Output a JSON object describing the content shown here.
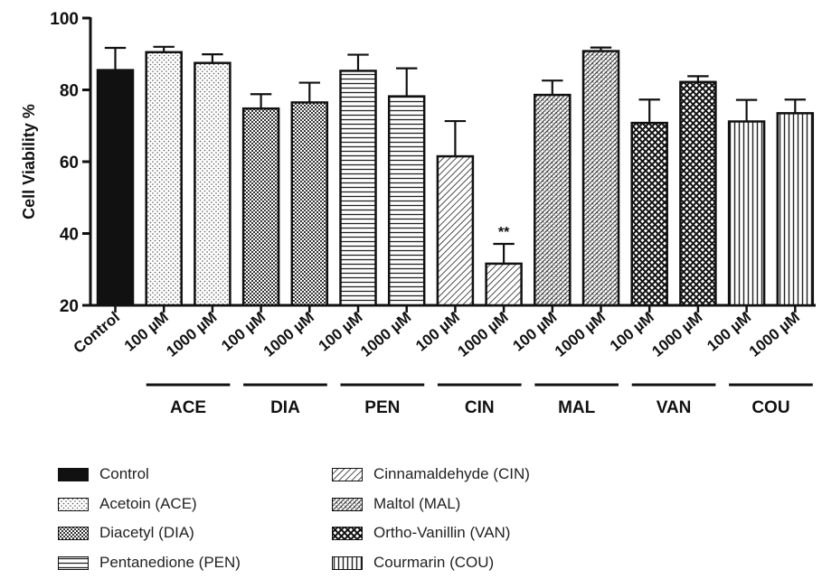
{
  "chart_data": {
    "type": "bar",
    "ylabel": "Cell Viability %",
    "xlabel": "",
    "ylim": [
      20,
      100
    ],
    "yticks": [
      "20",
      "40",
      "60",
      "80",
      "100"
    ],
    "grid": false,
    "categories": [
      "Control",
      "100 µM",
      "1000 µM",
      "100 µM",
      "1000 µM",
      "100 µM",
      "1000 µM",
      "100 µM",
      "1000 µM",
      "100 µM",
      "1000 µM",
      "100 µM",
      "1000 µM",
      "100 µM",
      "1000 µM"
    ],
    "values": [
      85.5,
      90.5,
      87.5,
      74.8,
      76.5,
      85.3,
      78.2,
      61.5,
      31.6,
      78.6,
      90.8,
      70.8,
      82.2,
      71.2,
      73.5
    ],
    "errors": [
      6.2,
      1.5,
      2.4,
      4.0,
      5.5,
      4.5,
      7.8,
      9.8,
      5.5,
      4.0,
      1.0,
      6.5,
      1.6,
      6.0,
      3.8
    ],
    "fill": [
      "control",
      "ace",
      "ace",
      "dia",
      "dia",
      "pen",
      "pen",
      "cin",
      "cin",
      "mal",
      "mal",
      "van",
      "van",
      "cou",
      "cou"
    ],
    "annotations": [
      {
        "bar": 8,
        "text": "**"
      }
    ],
    "groups": [
      {
        "label": "ACE",
        "from": 1,
        "to": 2
      },
      {
        "label": "DIA",
        "from": 3,
        "to": 4
      },
      {
        "label": "PEN",
        "from": 5,
        "to": 6
      },
      {
        "label": "CIN",
        "from": 7,
        "to": 8
      },
      {
        "label": "MAL",
        "from": 9,
        "to": 10
      },
      {
        "label": "VAN",
        "from": 11,
        "to": 12
      },
      {
        "label": "COU",
        "from": 13,
        "to": 14
      }
    ],
    "legend": {
      "placement": "bottom",
      "entries": [
        {
          "label": "Control",
          "fill": "control"
        },
        {
          "label": "Acetoin (ACE)",
          "fill": "ace"
        },
        {
          "label": "Diacetyl (DIA)",
          "fill": "dia"
        },
        {
          "label": "Pentanedione (PEN)",
          "fill": "pen"
        },
        {
          "label": "Cinnamaldehyde (CIN)",
          "fill": "cin"
        },
        {
          "label": "Maltol (MAL)",
          "fill": "mal"
        },
        {
          "label": "Ortho-Vanillin (VAN)",
          "fill": "van"
        },
        {
          "label": "Courmarin (COU)",
          "fill": "cou"
        }
      ]
    }
  },
  "colors": {
    "ink": "#111111",
    "background": "#ffffff"
  }
}
